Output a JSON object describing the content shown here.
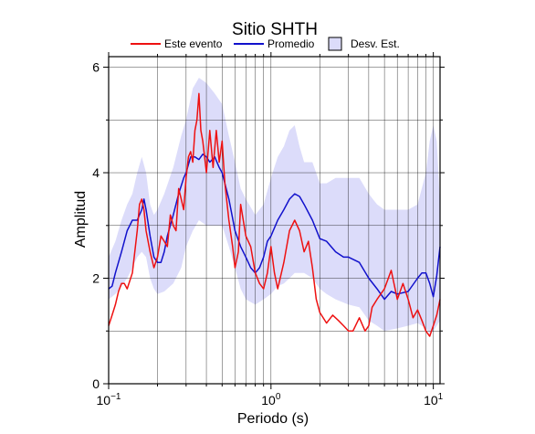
{
  "chart_data": {
    "type": "line",
    "title": "Sitio SHTH",
    "xlabel": "Periodo (s)",
    "ylabel": "Amplitud",
    "x_scale": "log",
    "xlim": [
      0.1,
      11.0
    ],
    "ylim": [
      0,
      6.2
    ],
    "x_major_ticks": [
      0.1,
      1,
      10
    ],
    "x_tick_labels": [
      {
        "base": "10",
        "exp": "−1"
      },
      {
        "base": "10",
        "exp": "0"
      },
      {
        "base": "10",
        "exp": "1"
      }
    ],
    "y_ticks": [
      0,
      2,
      4,
      6
    ],
    "y_tick_labels": [
      "0",
      "2",
      "4",
      "6"
    ],
    "grid": true,
    "legend": [
      "Este evento",
      "Promedio",
      "Desv. Est."
    ],
    "legend_position": "top",
    "colors": {
      "event": "#ee1111",
      "mean": "#1111cc",
      "band_fill": "#dcdcfa",
      "band_edge": "#333366"
    },
    "series": [
      {
        "name": "Este evento",
        "x": [
          0.1,
          0.105,
          0.11,
          0.115,
          0.12,
          0.125,
          0.13,
          0.14,
          0.15,
          0.155,
          0.16,
          0.165,
          0.17,
          0.18,
          0.19,
          0.2,
          0.21,
          0.22,
          0.23,
          0.24,
          0.25,
          0.26,
          0.27,
          0.28,
          0.29,
          0.3,
          0.31,
          0.32,
          0.33,
          0.34,
          0.35,
          0.36,
          0.37,
          0.38,
          0.4,
          0.42,
          0.44,
          0.46,
          0.48,
          0.5,
          0.52,
          0.55,
          0.58,
          0.6,
          0.63,
          0.65,
          0.7,
          0.75,
          0.8,
          0.85,
          0.9,
          0.95,
          1.0,
          1.05,
          1.1,
          1.2,
          1.3,
          1.4,
          1.5,
          1.6,
          1.7,
          1.8,
          1.9,
          2.0,
          2.2,
          2.4,
          2.6,
          2.8,
          3.0,
          3.2,
          3.5,
          3.8,
          4.0,
          4.2,
          4.5,
          5.0,
          5.5,
          6.0,
          6.5,
          7.0,
          7.5,
          8.0,
          8.5,
          9.0,
          9.5,
          10.0,
          10.5,
          11.0
        ],
        "y": [
          1.1,
          1.3,
          1.5,
          1.75,
          1.9,
          1.9,
          1.8,
          2.1,
          2.9,
          3.4,
          3.5,
          3.3,
          2.9,
          2.5,
          2.2,
          2.4,
          2.8,
          2.7,
          2.6,
          3.2,
          3.0,
          2.9,
          3.7,
          3.5,
          3.3,
          3.9,
          4.3,
          4.4,
          4.2,
          4.8,
          5.0,
          5.5,
          4.8,
          4.6,
          4.0,
          4.8,
          4.1,
          4.8,
          4.2,
          4.6,
          3.8,
          3.1,
          2.6,
          2.2,
          2.5,
          3.4,
          2.8,
          2.6,
          2.1,
          1.9,
          1.8,
          2.1,
          2.6,
          2.1,
          1.8,
          2.3,
          2.9,
          3.1,
          2.9,
          2.5,
          2.7,
          2.2,
          1.6,
          1.35,
          1.15,
          1.3,
          1.2,
          1.1,
          1.0,
          1.0,
          1.25,
          1.0,
          1.1,
          1.45,
          1.6,
          1.8,
          2.15,
          1.6,
          1.9,
          1.6,
          1.25,
          1.4,
          1.2,
          1.0,
          0.9,
          1.1,
          1.3,
          1.6
        ]
      },
      {
        "name": "Promedio",
        "x": [
          0.1,
          0.105,
          0.11,
          0.12,
          0.13,
          0.14,
          0.15,
          0.16,
          0.165,
          0.17,
          0.18,
          0.19,
          0.2,
          0.21,
          0.22,
          0.23,
          0.25,
          0.27,
          0.29,
          0.3,
          0.32,
          0.34,
          0.36,
          0.38,
          0.4,
          0.42,
          0.45,
          0.48,
          0.5,
          0.55,
          0.6,
          0.65,
          0.7,
          0.75,
          0.8,
          0.85,
          0.9,
          0.95,
          1.0,
          1.1,
          1.2,
          1.3,
          1.4,
          1.5,
          1.6,
          1.8,
          2.0,
          2.2,
          2.5,
          2.8,
          3.0,
          3.5,
          4.0,
          4.5,
          5.0,
          5.5,
          6.0,
          7.0,
          8.0,
          8.5,
          9.0,
          9.5,
          10.0,
          10.5,
          11.0
        ],
        "y": [
          1.8,
          1.85,
          2.1,
          2.5,
          2.9,
          3.1,
          3.1,
          3.3,
          3.5,
          3.3,
          2.8,
          2.4,
          2.3,
          2.3,
          2.5,
          2.8,
          3.2,
          3.6,
          3.9,
          4.0,
          4.3,
          4.3,
          4.25,
          4.35,
          4.3,
          4.2,
          4.3,
          4.1,
          4.0,
          3.5,
          2.9,
          2.6,
          2.4,
          2.2,
          2.1,
          2.2,
          2.4,
          2.7,
          2.8,
          3.1,
          3.3,
          3.5,
          3.6,
          3.55,
          3.4,
          3.1,
          2.75,
          2.7,
          2.5,
          2.4,
          2.4,
          2.3,
          2.0,
          1.8,
          1.6,
          1.75,
          1.7,
          1.75,
          2.0,
          2.1,
          2.1,
          1.9,
          1.65,
          2.05,
          2.6
        ]
      }
    ],
    "band": {
      "name": "Desv. Est.",
      "x": [
        0.1,
        0.11,
        0.12,
        0.13,
        0.14,
        0.15,
        0.16,
        0.17,
        0.18,
        0.19,
        0.2,
        0.22,
        0.25,
        0.28,
        0.3,
        0.33,
        0.36,
        0.4,
        0.45,
        0.5,
        0.55,
        0.6,
        0.65,
        0.7,
        0.8,
        0.9,
        1.0,
        1.1,
        1.2,
        1.3,
        1.4,
        1.5,
        1.6,
        1.8,
        2.0,
        2.2,
        2.5,
        3.0,
        3.5,
        4.0,
        4.5,
        5.0,
        6.0,
        7.0,
        8.0,
        9.0,
        9.5,
        10.0,
        10.5,
        11.0
      ],
      "upper": [
        2.4,
        2.7,
        3.1,
        3.4,
        3.6,
        4.0,
        4.3,
        4.0,
        3.4,
        3.2,
        3.3,
        3.6,
        4.1,
        4.7,
        5.0,
        5.6,
        5.8,
        5.7,
        5.5,
        5.3,
        4.7,
        4.2,
        3.7,
        3.5,
        3.2,
        3.4,
        3.9,
        4.3,
        4.5,
        4.8,
        4.9,
        4.5,
        4.2,
        4.2,
        3.8,
        3.8,
        3.9,
        3.9,
        3.9,
        3.6,
        3.4,
        3.3,
        3.3,
        3.3,
        3.4,
        4.0,
        4.6,
        4.9,
        4.6,
        3.4
      ],
      "lower": [
        1.6,
        1.7,
        1.85,
        2.0,
        2.2,
        2.4,
        2.5,
        2.4,
        2.0,
        1.8,
        1.7,
        1.75,
        1.9,
        2.2,
        2.6,
        2.9,
        3.1,
        3.0,
        3.0,
        3.0,
        2.6,
        2.2,
        1.8,
        1.6,
        1.5,
        1.6,
        1.7,
        1.85,
        1.9,
        2.0,
        2.1,
        2.1,
        2.1,
        2.0,
        1.8,
        1.7,
        1.6,
        1.5,
        1.45,
        1.2,
        1.1,
        1.0,
        1.05,
        1.1,
        1.15,
        1.05,
        0.95,
        1.0,
        1.1,
        1.2
      ]
    }
  }
}
